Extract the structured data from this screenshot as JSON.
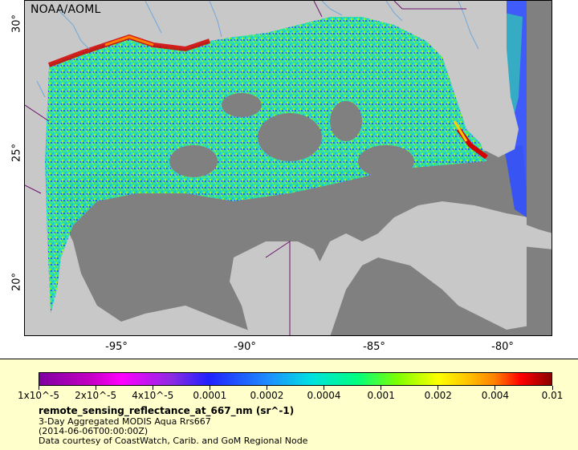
{
  "map": {
    "brand": "NOAA/AOML",
    "lat_labels": [
      "30°",
      "25°",
      "20°"
    ],
    "lon_labels": [
      "-95°",
      "-90°",
      "-85°",
      "-80°"
    ],
    "colors": {
      "land": "#c8c8c8",
      "no_data": "#808080",
      "rivers": "#6fa8dc",
      "borders": "#6b0f6b",
      "coastal_high": "#d40000"
    }
  },
  "legend": {
    "ticks": [
      "1x10^-5",
      "2x10^-5",
      "4x10^-5",
      "0.0001",
      "0.0002",
      "0.0004",
      "0.001",
      "0.002",
      "0.004",
      "0.01"
    ],
    "variable": "remote_sensing_reflectance_at_667_nm (sr^-1)",
    "product": "3-Day Aggregated MODIS Aqua Rrs667",
    "date": "(2014-06-06T00:00:00Z)",
    "credit": "Data courtesy of CoastWatch, Carib. and GoM Regional Node"
  }
}
